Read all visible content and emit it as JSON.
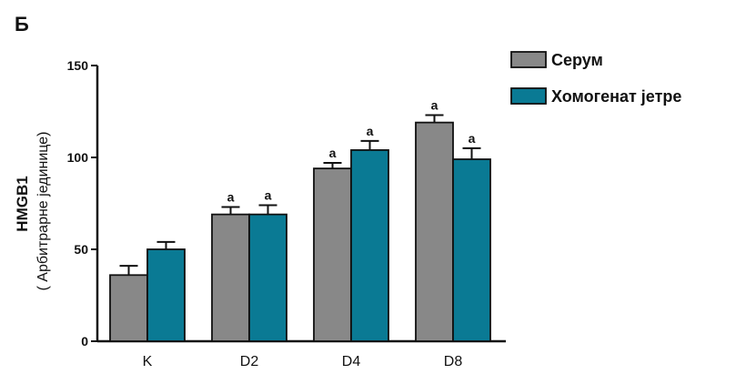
{
  "panel_label": "Б",
  "chart_data": {
    "type": "bar",
    "categories": [
      "K",
      "D2",
      "D4",
      "D8"
    ],
    "series": [
      {
        "name": "Серум",
        "color": "#888888",
        "values": [
          36,
          69,
          94,
          119
        ],
        "errors": [
          5,
          4,
          3,
          4
        ],
        "annotations": [
          "",
          "a",
          "a",
          "a"
        ]
      },
      {
        "name": "Хомогенат јетре",
        "color": "#0a7a94",
        "values": [
          50,
          69,
          104,
          99
        ],
        "errors": [
          4,
          5,
          5,
          6
        ],
        "annotations": [
          "",
          "a",
          "a",
          "a"
        ]
      }
    ],
    "ylabel": "HMGB1",
    "ylabel_sub": "( Арбитрарне јединице)",
    "ylim": [
      0,
      150
    ],
    "yticks": [
      0,
      50,
      100,
      150
    ],
    "grid": false,
    "legend_position": "top-right"
  }
}
